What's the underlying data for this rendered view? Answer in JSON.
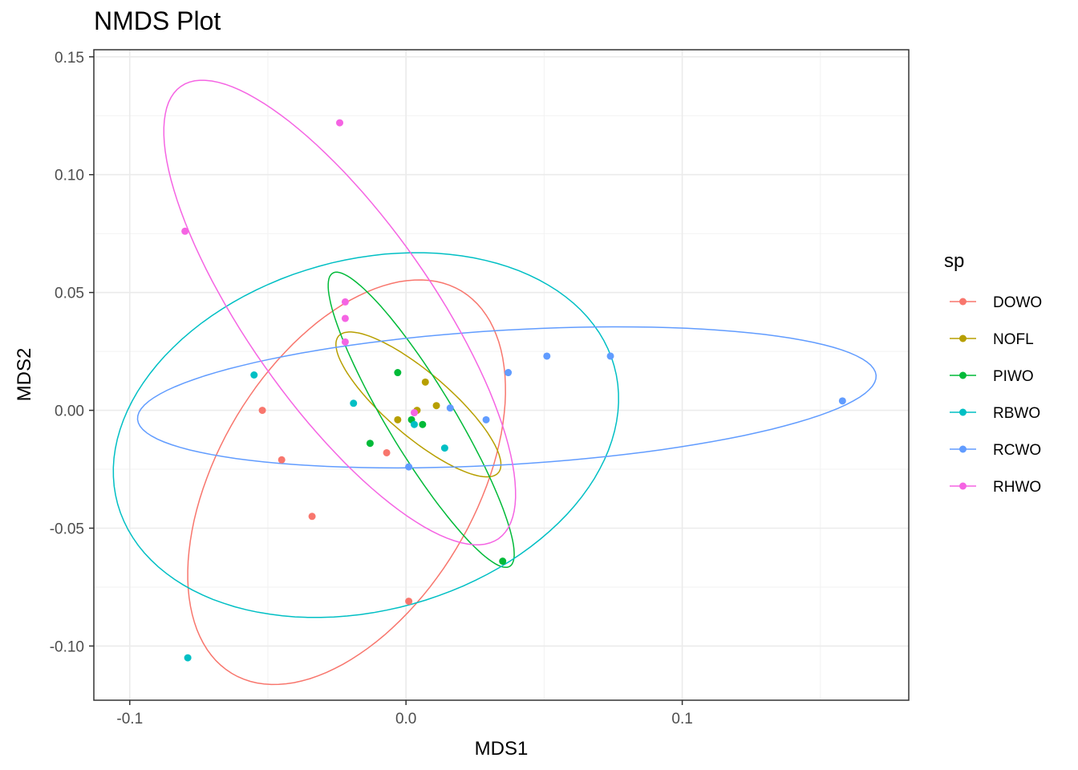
{
  "chart_data": {
    "type": "scatter",
    "title": "NMDS Plot",
    "xlabel": "MDS1",
    "ylabel": "MDS2",
    "xlim": [
      -0.113,
      0.182
    ],
    "ylim": [
      -0.123,
      0.153
    ],
    "xticks": [
      -0.1,
      0.0,
      0.1
    ],
    "xtick_labels": [
      "-0.1",
      "0.0",
      "0.1"
    ],
    "yticks": [
      -0.1,
      -0.05,
      0.0,
      0.05,
      0.1,
      0.15
    ],
    "ytick_labels": [
      "-0.10",
      "-0.05",
      "0.00",
      "0.05",
      "0.10",
      "0.15"
    ],
    "grid": true,
    "legend": {
      "title": "sp",
      "position": "right"
    },
    "series": [
      {
        "name": "DOWO",
        "color": "#F8766D",
        "points": [
          [
            -0.052,
            0.0
          ],
          [
            -0.045,
            -0.021
          ],
          [
            -0.034,
            -0.045
          ],
          [
            -0.007,
            -0.018
          ],
          [
            0.001,
            -0.081
          ]
        ],
        "ellipse": {
          "cx": -0.0215,
          "cy": -0.0305,
          "rx": 0.0915,
          "ry": 0.048,
          "angle": 66
        }
      },
      {
        "name": "NOFL",
        "color": "#B79F00",
        "points": [
          [
            -0.003,
            -0.004
          ],
          [
            0.004,
            0.0
          ],
          [
            0.007,
            0.012
          ],
          [
            0.011,
            0.002
          ]
        ],
        "ellipse": {
          "cx": 0.0045,
          "cy": 0.0025,
          "rx": 0.041,
          "ry": 0.0125,
          "angle": -46
        }
      },
      {
        "name": "PIWO",
        "color": "#00BA38",
        "points": [
          [
            -0.003,
            0.016
          ],
          [
            -0.013,
            -0.014
          ],
          [
            0.002,
            -0.004
          ],
          [
            0.006,
            -0.006
          ],
          [
            0.035,
            -0.064
          ]
        ],
        "ellipse": {
          "cx": 0.0055,
          "cy": -0.004,
          "rx": 0.07,
          "ry": 0.0125,
          "angle": -63
        }
      },
      {
        "name": "RBWO",
        "color": "#00BFC4",
        "points": [
          [
            -0.055,
            0.015
          ],
          [
            -0.019,
            0.003
          ],
          [
            0.003,
            -0.006
          ],
          [
            0.014,
            -0.016
          ],
          [
            -0.079,
            -0.105
          ]
        ],
        "ellipse": {
          "cx": -0.0145,
          "cy": -0.0105,
          "rx": 0.095,
          "ry": 0.073,
          "angle": 25
        }
      },
      {
        "name": "RCWO",
        "color": "#619CFF",
        "points": [
          [
            0.016,
            0.001
          ],
          [
            0.029,
            -0.004
          ],
          [
            0.037,
            0.016
          ],
          [
            0.051,
            0.023
          ],
          [
            0.074,
            0.023
          ],
          [
            0.158,
            0.004
          ],
          [
            0.001,
            -0.024
          ]
        ],
        "ellipse": {
          "cx": 0.0365,
          "cy": 0.0055,
          "rx": 0.134,
          "ry": 0.0285,
          "angle": 4
        }
      },
      {
        "name": "RHWO",
        "color": "#F564E3",
        "points": [
          [
            -0.024,
            0.122
          ],
          [
            -0.08,
            0.076
          ],
          [
            -0.022,
            0.046
          ],
          [
            -0.022,
            0.039
          ],
          [
            -0.022,
            0.029
          ],
          [
            0.003,
            -0.001
          ]
        ],
        "ellipse": {
          "cx": -0.024,
          "cy": 0.0415,
          "rx": 0.112,
          "ry": 0.035,
          "angle": -60
        }
      }
    ]
  }
}
